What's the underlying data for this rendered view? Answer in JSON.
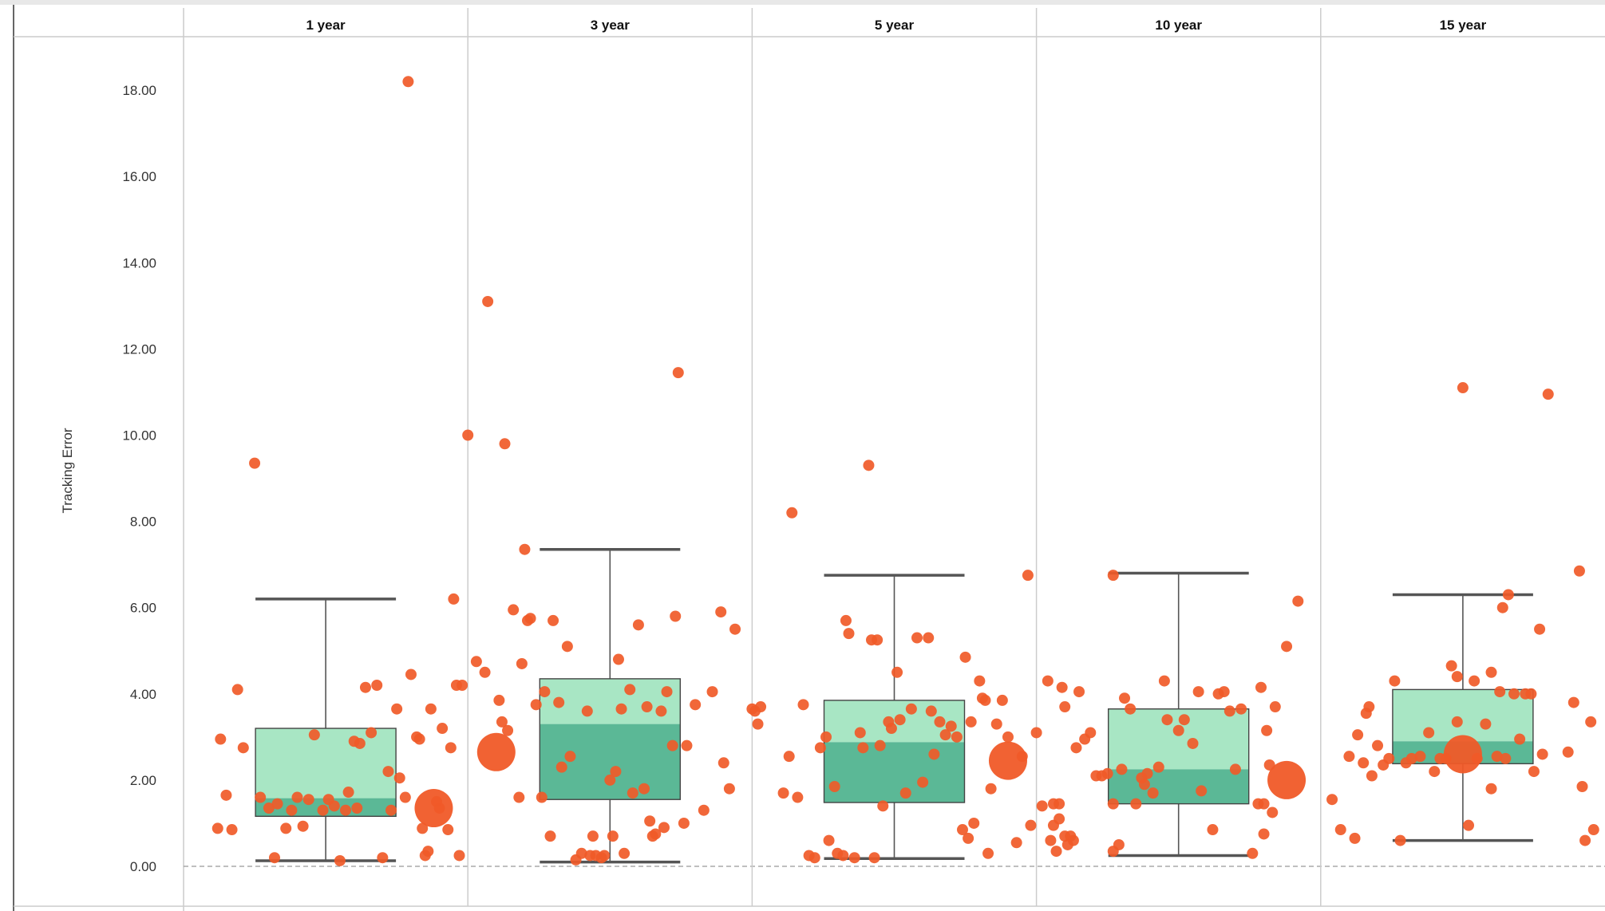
{
  "chart_data": {
    "type": "box-and-scatter",
    "ylabel": "Tracking Error",
    "ylim": [
      -0.5,
      19.0
    ],
    "yticks": [
      0,
      2,
      4,
      6,
      8,
      10,
      12,
      14,
      16,
      18
    ],
    "ytick_labels": [
      "0.00",
      "2.00",
      "4.00",
      "6.00",
      "8.00",
      "10.00",
      "12.00",
      "14.00",
      "16.00",
      "18.00"
    ],
    "reference_line": 0,
    "colors": {
      "point": "#F05A28",
      "box_upper": "#A8E6C4",
      "box_lower": "#5BB896",
      "whisker": "#555555",
      "reference_line": "#999999",
      "panel_divider": "#CCCCCC"
    },
    "panels": [
      {
        "label": "1 year",
        "box": {
          "whisker_low": 0.13,
          "q1": 1.16,
          "median": 1.58,
          "q3": 3.2,
          "whisker_high": 6.2
        },
        "highlight": {
          "x": 0.88,
          "y": 1.35
        },
        "points": [
          [
            0.12,
            0.88
          ],
          [
            0.13,
            2.95
          ],
          [
            0.15,
            1.65
          ],
          [
            0.17,
            0.85
          ],
          [
            0.19,
            4.1
          ],
          [
            0.21,
            2.75
          ],
          [
            0.25,
            9.35
          ],
          [
            0.27,
            1.6
          ],
          [
            0.3,
            1.35
          ],
          [
            0.32,
            0.2
          ],
          [
            0.33,
            1.45
          ],
          [
            0.36,
            0.88
          ],
          [
            0.38,
            1.3
          ],
          [
            0.4,
            1.6
          ],
          [
            0.42,
            0.93
          ],
          [
            0.44,
            1.55
          ],
          [
            0.46,
            3.05
          ],
          [
            0.49,
            1.3
          ],
          [
            0.51,
            1.55
          ],
          [
            0.53,
            1.4
          ],
          [
            0.55,
            0.13
          ],
          [
            0.57,
            1.3
          ],
          [
            0.58,
            1.72
          ],
          [
            0.6,
            2.9
          ],
          [
            0.61,
            1.35
          ],
          [
            0.62,
            2.85
          ],
          [
            0.64,
            4.15
          ],
          [
            0.66,
            3.1
          ],
          [
            0.68,
            4.2
          ],
          [
            0.7,
            0.2
          ],
          [
            0.72,
            2.2
          ],
          [
            0.73,
            1.3
          ],
          [
            0.75,
            3.65
          ],
          [
            0.76,
            2.05
          ],
          [
            0.78,
            1.6
          ],
          [
            0.79,
            18.2
          ],
          [
            0.8,
            4.45
          ],
          [
            0.82,
            3.0
          ],
          [
            0.83,
            2.95
          ],
          [
            0.84,
            0.88
          ],
          [
            0.85,
            0.25
          ],
          [
            0.86,
            0.35
          ],
          [
            0.87,
            3.65
          ],
          [
            0.89,
            1.5
          ],
          [
            0.9,
            1.35
          ],
          [
            0.91,
            3.2
          ],
          [
            0.93,
            0.85
          ],
          [
            0.94,
            2.75
          ],
          [
            0.95,
            6.2
          ],
          [
            0.96,
            4.2
          ],
          [
            0.97,
            0.25
          ],
          [
            0.98,
            4.2
          ],
          [
            1.0,
            10.0
          ],
          [
            1.03,
            4.75
          ],
          [
            1.06,
            4.5
          ],
          [
            1.07,
            13.1
          ]
        ]
      },
      {
        "label": "3 year",
        "box": {
          "whisker_low": 0.1,
          "q1": 1.55,
          "median": 3.3,
          "q3": 4.35,
          "whisker_high": 7.35
        },
        "highlight": {
          "x": 0.1,
          "y": 2.65
        },
        "points": [
          [
            0.11,
            3.85
          ],
          [
            0.12,
            3.35
          ],
          [
            0.13,
            9.8
          ],
          [
            0.14,
            3.15
          ],
          [
            0.16,
            5.95
          ],
          [
            0.18,
            1.6
          ],
          [
            0.19,
            4.7
          ],
          [
            0.2,
            7.35
          ],
          [
            0.21,
            5.7
          ],
          [
            0.22,
            5.75
          ],
          [
            0.24,
            3.75
          ],
          [
            0.26,
            1.6
          ],
          [
            0.27,
            4.05
          ],
          [
            0.29,
            0.7
          ],
          [
            0.3,
            5.7
          ],
          [
            0.32,
            3.8
          ],
          [
            0.33,
            2.3
          ],
          [
            0.35,
            5.1
          ],
          [
            0.36,
            2.55
          ],
          [
            0.38,
            0.15
          ],
          [
            0.4,
            0.3
          ],
          [
            0.42,
            3.6
          ],
          [
            0.43,
            0.25
          ],
          [
            0.44,
            0.7
          ],
          [
            0.45,
            0.25
          ],
          [
            0.47,
            0.2
          ],
          [
            0.48,
            0.25
          ],
          [
            0.5,
            2.0
          ],
          [
            0.51,
            0.7
          ],
          [
            0.52,
            2.2
          ],
          [
            0.53,
            4.8
          ],
          [
            0.54,
            3.65
          ],
          [
            0.55,
            0.3
          ],
          [
            0.57,
            4.1
          ],
          [
            0.58,
            1.7
          ],
          [
            0.6,
            5.6
          ],
          [
            0.62,
            1.8
          ],
          [
            0.63,
            3.7
          ],
          [
            0.64,
            1.05
          ],
          [
            0.65,
            0.7
          ],
          [
            0.66,
            0.75
          ],
          [
            0.68,
            3.6
          ],
          [
            0.69,
            0.9
          ],
          [
            0.7,
            4.05
          ],
          [
            0.72,
            2.8
          ],
          [
            0.73,
            5.8
          ],
          [
            0.74,
            11.45
          ],
          [
            0.76,
            1.0
          ],
          [
            0.77,
            2.8
          ],
          [
            0.8,
            3.75
          ],
          [
            0.83,
            1.3
          ],
          [
            0.86,
            4.05
          ],
          [
            0.89,
            5.9
          ],
          [
            0.9,
            2.4
          ],
          [
            0.92,
            1.8
          ],
          [
            0.94,
            5.5
          ],
          [
            1.0,
            3.65
          ],
          [
            1.01,
            3.6
          ],
          [
            1.02,
            3.3
          ],
          [
            1.03,
            3.7
          ]
        ]
      },
      {
        "label": "5 year",
        "box": {
          "whisker_low": 0.18,
          "q1": 1.48,
          "median": 2.88,
          "q3": 3.85,
          "whisker_high": 6.75
        },
        "highlight": {
          "x": 0.9,
          "y": 2.45
        },
        "points": [
          [
            0.11,
            1.7
          ],
          [
            0.13,
            2.55
          ],
          [
            0.14,
            8.2
          ],
          [
            0.16,
            1.6
          ],
          [
            0.18,
            3.75
          ],
          [
            0.2,
            0.25
          ],
          [
            0.22,
            0.2
          ],
          [
            0.24,
            2.75
          ],
          [
            0.26,
            3.0
          ],
          [
            0.27,
            0.6
          ],
          [
            0.29,
            1.85
          ],
          [
            0.3,
            0.3
          ],
          [
            0.32,
            0.25
          ],
          [
            0.33,
            5.7
          ],
          [
            0.34,
            5.4
          ],
          [
            0.36,
            0.2
          ],
          [
            0.38,
            3.1
          ],
          [
            0.39,
            2.75
          ],
          [
            0.41,
            9.3
          ],
          [
            0.42,
            5.25
          ],
          [
            0.43,
            0.2
          ],
          [
            0.44,
            5.25
          ],
          [
            0.45,
            2.8
          ],
          [
            0.46,
            1.4
          ],
          [
            0.48,
            3.35
          ],
          [
            0.49,
            3.2
          ],
          [
            0.51,
            4.5
          ],
          [
            0.52,
            3.4
          ],
          [
            0.54,
            1.7
          ],
          [
            0.56,
            3.65
          ],
          [
            0.58,
            5.3
          ],
          [
            0.6,
            1.95
          ],
          [
            0.62,
            5.3
          ],
          [
            0.63,
            3.6
          ],
          [
            0.64,
            2.6
          ],
          [
            0.66,
            3.35
          ],
          [
            0.68,
            3.05
          ],
          [
            0.7,
            3.25
          ],
          [
            0.72,
            3.0
          ],
          [
            0.74,
            0.85
          ],
          [
            0.75,
            4.85
          ],
          [
            0.76,
            0.65
          ],
          [
            0.77,
            3.35
          ],
          [
            0.78,
            1.0
          ],
          [
            0.8,
            4.3
          ],
          [
            0.81,
            3.9
          ],
          [
            0.82,
            3.85
          ],
          [
            0.83,
            0.3
          ],
          [
            0.84,
            1.8
          ],
          [
            0.86,
            3.3
          ],
          [
            0.88,
            3.85
          ],
          [
            0.9,
            3.0
          ],
          [
            0.93,
            0.55
          ],
          [
            0.95,
            2.55
          ],
          [
            0.97,
            6.75
          ],
          [
            0.98,
            0.95
          ],
          [
            1.0,
            3.1
          ],
          [
            1.02,
            1.4
          ],
          [
            1.04,
            4.3
          ],
          [
            1.05,
            0.6
          ],
          [
            1.06,
            0.95
          ],
          [
            1.08,
            1.45
          ],
          [
            1.1,
            3.7
          ]
        ]
      },
      {
        "label": "10 year",
        "box": {
          "whisker_low": 0.25,
          "q1": 1.45,
          "median": 2.25,
          "q3": 3.65,
          "whisker_high": 6.8
        },
        "highlight": {
          "x": 0.88,
          "y": 2.0
        },
        "points": [
          [
            0.06,
            1.45
          ],
          [
            0.07,
            0.35
          ],
          [
            0.08,
            1.1
          ],
          [
            0.09,
            4.15
          ],
          [
            0.1,
            0.7
          ],
          [
            0.11,
            0.5
          ],
          [
            0.12,
            0.7
          ],
          [
            0.13,
            0.6
          ],
          [
            0.14,
            2.75
          ],
          [
            0.15,
            4.05
          ],
          [
            0.17,
            2.95
          ],
          [
            0.19,
            3.1
          ],
          [
            0.21,
            2.1
          ],
          [
            0.23,
            2.1
          ],
          [
            0.25,
            2.15
          ],
          [
            0.27,
            0.35
          ],
          [
            0.29,
            0.5
          ],
          [
            0.27,
            1.45
          ],
          [
            0.27,
            6.75
          ],
          [
            0.3,
            2.25
          ],
          [
            0.31,
            3.9
          ],
          [
            0.33,
            3.65
          ],
          [
            0.35,
            1.45
          ],
          [
            0.37,
            2.05
          ],
          [
            0.38,
            1.9
          ],
          [
            0.39,
            2.15
          ],
          [
            0.41,
            1.7
          ],
          [
            0.43,
            2.3
          ],
          [
            0.45,
            4.3
          ],
          [
            0.46,
            3.4
          ],
          [
            0.5,
            3.15
          ],
          [
            0.52,
            3.4
          ],
          [
            0.55,
            2.85
          ],
          [
            0.57,
            4.05
          ],
          [
            0.58,
            1.75
          ],
          [
            0.62,
            0.85
          ],
          [
            0.64,
            4.0
          ],
          [
            0.66,
            4.05
          ],
          [
            0.68,
            3.6
          ],
          [
            0.7,
            2.25
          ],
          [
            0.72,
            3.65
          ],
          [
            0.76,
            0.3
          ],
          [
            0.78,
            1.45
          ],
          [
            0.79,
            4.15
          ],
          [
            0.8,
            0.75
          ],
          [
            0.81,
            3.15
          ],
          [
            0.82,
            2.35
          ],
          [
            0.83,
            1.25
          ],
          [
            0.84,
            3.7
          ],
          [
            0.88,
            5.1
          ],
          [
            0.92,
            6.15
          ],
          [
            0.8,
            1.45
          ]
        ]
      },
      {
        "label": "15 year",
        "box": {
          "whisker_low": 0.6,
          "q1": 2.38,
          "median": 2.9,
          "q3": 4.1,
          "whisker_high": 6.3
        },
        "highlight": {
          "x": 0.5,
          "y": 2.6
        },
        "points": [
          [
            0.04,
            1.55
          ],
          [
            0.07,
            0.85
          ],
          [
            0.1,
            2.55
          ],
          [
            0.12,
            0.65
          ],
          [
            0.13,
            3.05
          ],
          [
            0.15,
            2.4
          ],
          [
            0.16,
            3.55
          ],
          [
            0.18,
            2.1
          ],
          [
            0.17,
            3.7
          ],
          [
            0.2,
            2.8
          ],
          [
            0.22,
            2.35
          ],
          [
            0.24,
            2.5
          ],
          [
            0.26,
            4.3
          ],
          [
            0.28,
            0.6
          ],
          [
            0.3,
            2.4
          ],
          [
            0.32,
            2.5
          ],
          [
            0.35,
            2.55
          ],
          [
            0.38,
            3.1
          ],
          [
            0.4,
            2.2
          ],
          [
            0.42,
            2.5
          ],
          [
            0.44,
            2.5
          ],
          [
            0.46,
            4.65
          ],
          [
            0.48,
            4.4
          ],
          [
            0.48,
            3.35
          ],
          [
            0.5,
            11.1
          ],
          [
            0.52,
            0.95
          ],
          [
            0.54,
            4.3
          ],
          [
            0.55,
            2.5
          ],
          [
            0.58,
            3.3
          ],
          [
            0.6,
            1.8
          ],
          [
            0.6,
            4.5
          ],
          [
            0.62,
            2.55
          ],
          [
            0.63,
            4.05
          ],
          [
            0.64,
            6.0
          ],
          [
            0.65,
            2.5
          ],
          [
            0.66,
            6.3
          ],
          [
            0.68,
            4.0
          ],
          [
            0.7,
            2.95
          ],
          [
            0.72,
            4.0
          ],
          [
            0.74,
            4.0
          ],
          [
            0.75,
            2.2
          ],
          [
            0.77,
            5.5
          ],
          [
            0.78,
            2.6
          ],
          [
            0.8,
            10.95
          ],
          [
            0.87,
            2.65
          ],
          [
            0.89,
            3.8
          ],
          [
            0.91,
            6.85
          ],
          [
            0.92,
            1.85
          ],
          [
            0.93,
            0.6
          ],
          [
            0.95,
            3.35
          ],
          [
            0.96,
            0.85
          ],
          [
            1.02,
            4.15
          ],
          [
            1.03,
            4.85
          ]
        ]
      }
    ]
  }
}
